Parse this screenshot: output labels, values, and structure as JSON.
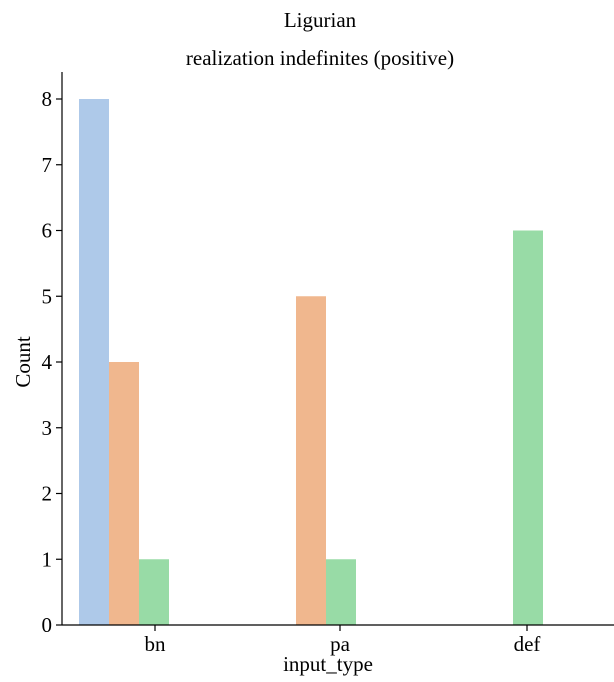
{
  "chart_data": {
    "type": "bar",
    "title": [
      "Ligurian",
      "realization indefinites (positive)"
    ],
    "xlabel": "input_type",
    "ylabel": "Count",
    "categories": [
      "bn",
      "pa",
      "def"
    ],
    "series": [
      {
        "values": [
          8,
          0,
          0
        ],
        "color": "#aec9e9"
      },
      {
        "values": [
          4,
          5,
          0
        ],
        "color": "#f0b78e"
      },
      {
        "values": [
          1,
          1,
          6
        ],
        "color": "#98dba6"
      }
    ],
    "yticks": [
      "0",
      "1",
      "2",
      "3",
      "4",
      "5",
      "6",
      "7",
      "8"
    ],
    "ylim": [
      0,
      8.4
    ],
    "grid": false,
    "legend": false
  }
}
